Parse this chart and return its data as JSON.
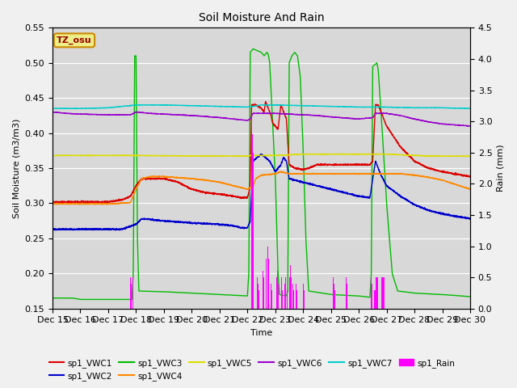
{
  "title": "Soil Moisture And Rain",
  "xlabel": "Time",
  "ylabel_left": "Soil Moisture (m3/m3)",
  "ylabel_right": "Rain (mm)",
  "station_label": "TZ_osu",
  "ylim_left": [
    0.15,
    0.55
  ],
  "ylim_right": [
    0.0,
    4.5
  ],
  "xtick_labels": [
    "Dec 15",
    "Dec 16",
    "Dec 17",
    "Dec 18",
    "Dec 19",
    "Dec 20",
    "Dec 21",
    "Dec 22",
    "Dec 23",
    "Dec 24",
    "Dec 25",
    "Dec 26",
    "Dec 27",
    "Dec 28",
    "Dec 29",
    "Dec 30"
  ],
  "colors": {
    "VWC1": "#dd0000",
    "VWC2": "#0000cc",
    "VWC3": "#00bb00",
    "VWC4": "#ff8800",
    "VWC5": "#dddd00",
    "VWC6": "#9900cc",
    "VWC7": "#00cccc",
    "Rain": "#ff00ff"
  },
  "background_color": "#d8d8d8",
  "grid_color": "#ffffff",
  "figsize": [
    6.4,
    4.8
  ],
  "dpi": 100
}
